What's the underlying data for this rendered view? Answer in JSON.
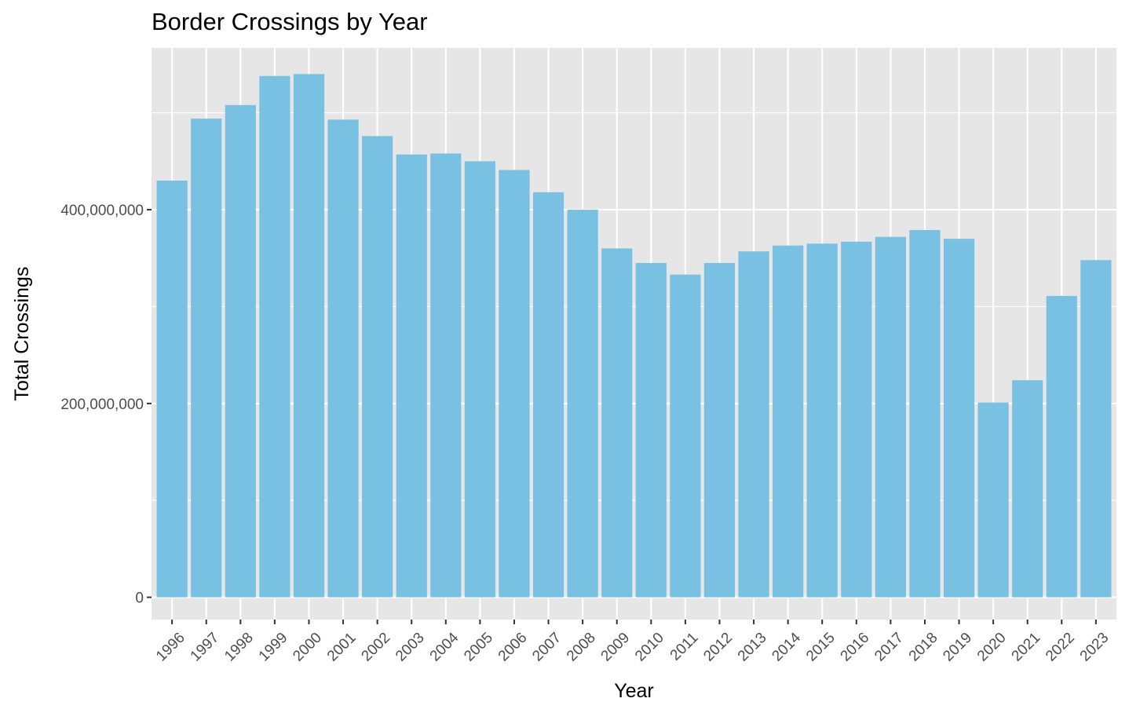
{
  "chart_data": {
    "type": "bar",
    "title": "Border Crossings by Year",
    "xlabel": "Year",
    "ylabel": "Total Crossings",
    "categories": [
      "1996",
      "1997",
      "1998",
      "1999",
      "2000",
      "2001",
      "2002",
      "2003",
      "2004",
      "2005",
      "2006",
      "2007",
      "2008",
      "2009",
      "2010",
      "2011",
      "2012",
      "2013",
      "2014",
      "2015",
      "2016",
      "2017",
      "2018",
      "2019",
      "2020",
      "2021",
      "2022",
      "2023"
    ],
    "values": [
      430000000,
      494000000,
      508000000,
      538000000,
      540000000,
      493000000,
      476000000,
      457000000,
      458000000,
      450000000,
      441000000,
      418000000,
      400000000,
      360000000,
      345000000,
      333000000,
      345000000,
      357000000,
      363000000,
      365000000,
      367000000,
      372000000,
      379000000,
      370000000,
      201000000,
      224000000,
      311000000,
      348000000
    ],
    "yticks": [
      0,
      200000000,
      400000000
    ],
    "ytick_labels": [
      "0",
      "200,000,000",
      "400,000,000"
    ],
    "ylim": [
      -23000000,
      567000000
    ],
    "grid": true,
    "bar_color": "#79c1e3",
    "panel_color": "#e6e6e6"
  }
}
